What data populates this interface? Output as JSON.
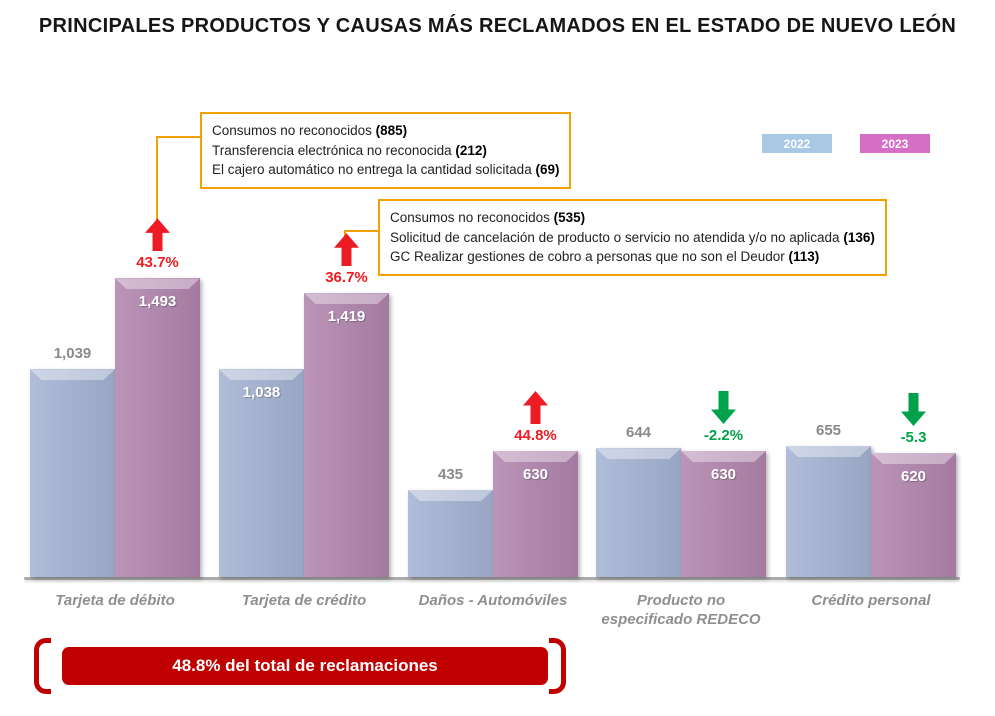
{
  "title": "PRINCIPALES PRODUCTOS Y CAUSAS MÁS RECLAMADOS EN EL ESTADO DE NUEVO LEÓN",
  "legend": {
    "items": [
      {
        "label": "2022",
        "color": "#a9c8e6"
      },
      {
        "label": "2023",
        "color": "#d56fc6"
      }
    ]
  },
  "callouts": [
    {
      "lines": [
        {
          "text": "Consumos no reconocidos",
          "value": "(885)"
        },
        {
          "text": "Transferencia electrónica no reconocida",
          "value": "(212)"
        },
        {
          "text": "El cajero automático no entrega la cantidad solicitada",
          "value": "(69)"
        }
      ]
    },
    {
      "lines": [
        {
          "text": "Consumos no reconocidos",
          "value": "(535)"
        },
        {
          "text": "Solicitud de cancelación de producto o servicio no atendida y/o no aplicada",
          "value": "(136)"
        },
        {
          "text": "GC Realizar gestiones de cobro a personas que no son el Deudor",
          "value": "(113)"
        }
      ]
    }
  ],
  "chart_data": {
    "type": "bar",
    "title": "Principales productos y causas más reclamados en el estado de Nuevo León",
    "categories": [
      "Tarjeta de débito",
      "Tarjeta de crédito",
      "Daños - Automóviles",
      "Producto no especificado REDECO",
      "Crédito personal"
    ],
    "series": [
      {
        "name": "2022",
        "values": [
          1039,
          1038,
          435,
          644,
          655
        ],
        "labels": [
          "1,039",
          "1,038",
          "435",
          "644",
          "655"
        ],
        "color": "#a3b2d3",
        "label_inside": [
          false,
          true,
          false,
          false,
          false
        ]
      },
      {
        "name": "2023",
        "values": [
          1493,
          1419,
          630,
          630,
          620
        ],
        "labels": [
          "1,493",
          "1,419",
          "630",
          "630",
          "620"
        ],
        "color": "#b083ad",
        "label_inside": [
          true,
          true,
          true,
          true,
          true
        ]
      }
    ],
    "changes": [
      {
        "label": "43.7%",
        "direction": "up"
      },
      {
        "label": "36.7%",
        "direction": "up"
      },
      {
        "label": "44.8%",
        "direction": "up"
      },
      {
        "label": "-2.2%",
        "direction": "down"
      },
      {
        "label": "-5.3",
        "direction": "down"
      }
    ],
    "colors": {
      "up": "#ed1c24",
      "down": "#00a14b"
    },
    "ylim": [
      0,
      1550
    ],
    "grid": false,
    "legend_position": "top-right"
  },
  "footer": {
    "text": "48.8% del total de reclamaciones"
  }
}
